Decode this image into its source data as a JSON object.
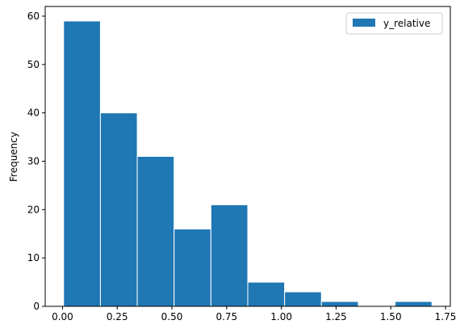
{
  "chart_data": {
    "type": "bar",
    "title": "",
    "xlabel": "",
    "ylabel": "Frequency",
    "bin_edges": [
      0.005,
      0.1733,
      0.3416,
      0.5099,
      0.6782,
      0.8465,
      1.0148,
      1.1831,
      1.3514,
      1.5197,
      1.688
    ],
    "values": [
      59,
      40,
      31,
      16,
      21,
      5,
      3,
      1,
      0,
      1
    ],
    "series": [
      {
        "name": "y_relative",
        "values": [
          59,
          40,
          31,
          16,
          21,
          5,
          3,
          1,
          0,
          1
        ]
      }
    ],
    "xlim": [
      -0.079,
      1.772
    ],
    "ylim": [
      0,
      62
    ],
    "x_ticks": [
      0.0,
      0.25,
      0.5,
      0.75,
      1.0,
      1.25,
      1.5,
      1.75
    ],
    "x_tick_labels": [
      "0.00",
      "0.25",
      "0.50",
      "0.75",
      "1.00",
      "1.25",
      "1.50",
      "1.75"
    ],
    "y_ticks": [
      0,
      10,
      20,
      30,
      40,
      50,
      60
    ],
    "y_tick_labels": [
      "0",
      "10",
      "20",
      "30",
      "40",
      "50",
      "60"
    ],
    "grid": false,
    "legend_position": "top-right",
    "bar_color": "#1f77b4",
    "edge_color": "#ffffff"
  }
}
